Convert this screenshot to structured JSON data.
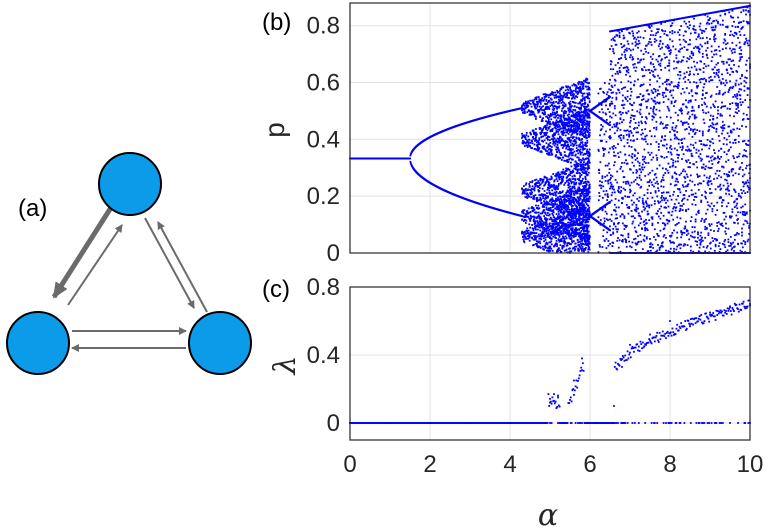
{
  "colors": {
    "points": "#0000ff",
    "nodes": "#0c9be8",
    "grid": "#e3e3e3",
    "axis": "#262626",
    "arrows": "#6b6b6b"
  },
  "diagram": {
    "label": "(a)",
    "nodes": [
      "top",
      "left",
      "right"
    ]
  },
  "chart_data": [
    {
      "panel": "(b)",
      "type": "scatter",
      "title": "",
      "xlabel": "",
      "ylabel": "p",
      "xlim": [
        0,
        10
      ],
      "ylim": [
        0,
        0.88
      ],
      "xticks": [
        "0",
        "2",
        "4",
        "6",
        "8",
        "10"
      ],
      "yticks": [
        "0",
        "0.2",
        "0.4",
        "0.6",
        "0.8"
      ],
      "grid": true,
      "description_of_points": "bifurcation diagram",
      "series": [
        {
          "branches": [
            {
              "x_range": [
                0,
                1.5
              ],
              "values": [
                0.333
              ]
            },
            {
              "x_range": [
                1.5,
                4.3
              ],
              "upper_end": 0.51,
              "lower_end": 0.13
            },
            {
              "x_range": [
                4.3,
                6.0
              ],
              "regime": "period doubling / chaos",
              "range": [
                0.02,
                0.6
              ]
            },
            {
              "x_range": [
                6.0,
                6.5
              ],
              "windows": [
                0.5,
                0.13
              ]
            },
            {
              "x_range": [
                6.5,
                10
              ],
              "regime": "chaos",
              "range": [
                0.0,
                0.87
              ]
            }
          ]
        }
      ]
    },
    {
      "panel": "(c)",
      "type": "scatter",
      "title": "",
      "xlabel": "α",
      "ylabel": "λ",
      "xlim": [
        0,
        10
      ],
      "ylim": [
        -0.1,
        0.8
      ],
      "xticks": [
        "0",
        "2",
        "4",
        "6",
        "8",
        "10"
      ],
      "yticks": [
        "0",
        "0.4",
        "0.8"
      ],
      "grid": true,
      "series": [
        {
          "points": [
            [
              0,
              0
            ],
            [
              1,
              0
            ],
            [
              2,
              0
            ],
            [
              3,
              0
            ],
            [
              4,
              0
            ],
            [
              4.9,
              0
            ],
            [
              5.0,
              0.12
            ],
            [
              5.1,
              0.17
            ],
            [
              5.2,
              0.15
            ],
            [
              5.6,
              0.25
            ],
            [
              5.8,
              0.38
            ],
            [
              6.6,
              0.1
            ],
            [
              6.8,
              0.33
            ],
            [
              7.0,
              0.46
            ],
            [
              7.5,
              0.52
            ],
            [
              8.0,
              0.6
            ],
            [
              8.5,
              0.58
            ],
            [
              9.0,
              0.65
            ],
            [
              9.5,
              0.68
            ],
            [
              10,
              0.7
            ]
          ]
        }
      ]
    }
  ]
}
